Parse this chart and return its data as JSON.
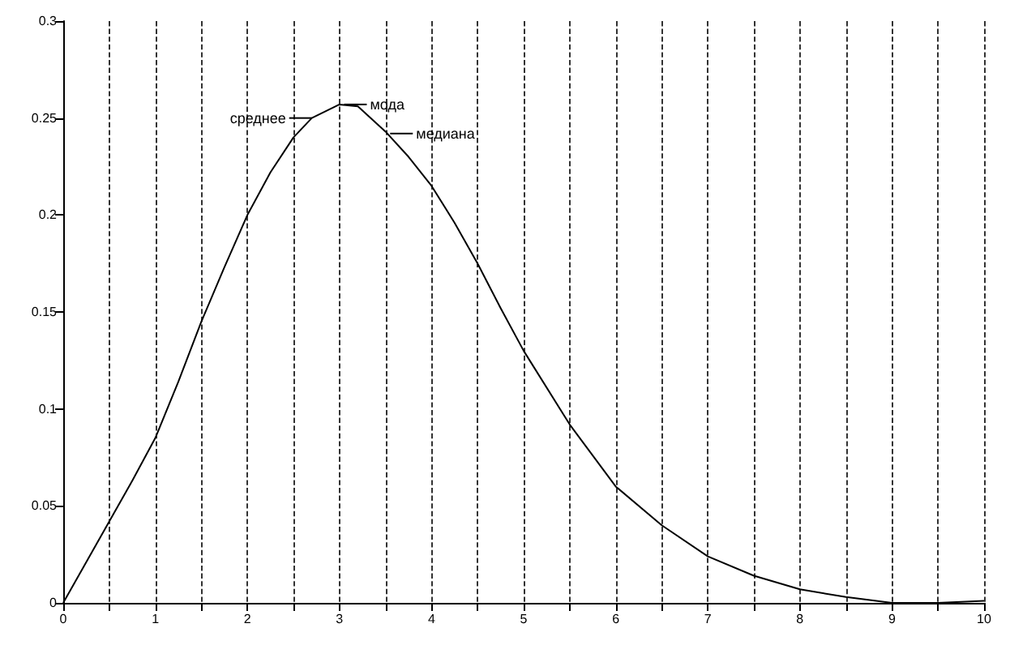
{
  "chart_data": {
    "type": "line",
    "x": [
      0,
      0.25,
      0.5,
      0.75,
      1,
      1.25,
      1.5,
      1.75,
      2,
      2.25,
      2.5,
      2.7,
      3,
      3.2,
      3.5,
      3.75,
      4,
      4.25,
      4.5,
      4.75,
      5,
      5.5,
      6,
      6.5,
      7,
      7.5,
      8,
      8.5,
      9,
      9.5,
      10
    ],
    "series": [
      {
        "color": "#000000",
        "values": [
          0,
          0.021,
          0.042,
          0.063,
          0.085,
          0.114,
          0.145,
          0.173,
          0.2,
          0.222,
          0.24,
          0.25,
          0.257,
          0.256,
          0.243,
          0.23,
          0.215,
          0.196,
          0.175,
          0.152,
          0.13,
          0.092,
          0.06,
          0.04,
          0.024,
          0.014,
          0.007,
          0.003,
          0,
          0,
          0.001
        ]
      }
    ],
    "xlim": [
      0,
      10
    ],
    "ylim": [
      0,
      0.3
    ],
    "xticks": [
      0,
      {
        "value": 0.5,
        "label": null
      },
      1,
      {
        "value": 1.5,
        "label": null
      },
      2,
      {
        "value": 2.5,
        "label": null
      },
      3,
      {
        "value": 3.5,
        "label": null
      },
      4,
      {
        "value": 4.5,
        "label": null
      },
      5,
      {
        "value": 5.5,
        "label": null
      },
      6,
      {
        "value": 6.5,
        "label": null
      },
      7,
      {
        "value": 7.5,
        "label": null
      },
      8,
      {
        "value": 8.5,
        "label": null
      },
      9,
      {
        "value": 9.5,
        "label": null
      },
      10
    ],
    "yticks": [
      0,
      0.05,
      0.1,
      0.15,
      0.2,
      0.25,
      0.3
    ],
    "grid": "x",
    "marker": "none",
    "line_style": "solid",
    "annotations": [
      {
        "text": "мода",
        "x": 3.05,
        "y": 0.257
      },
      {
        "text": "среднее",
        "x": 2.7,
        "y": 0.25
      },
      {
        "text": "медиана",
        "x": 3.55,
        "y": 0.242
      }
    ]
  }
}
